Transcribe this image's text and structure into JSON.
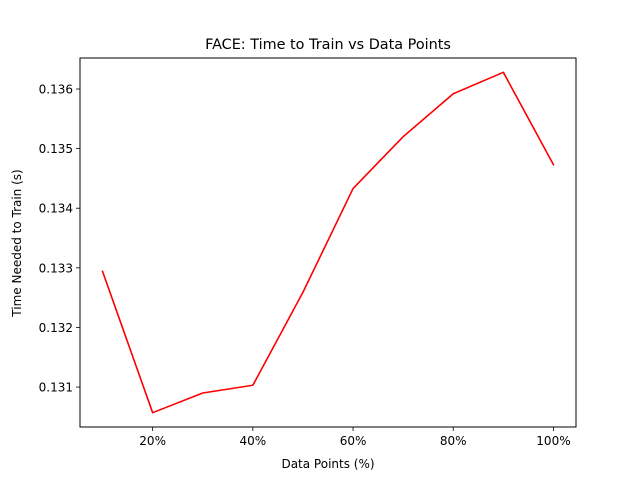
{
  "chart_data": {
    "type": "line",
    "title": "FACE: Time to Train vs Data Points",
    "xlabel": "Data Points (%)",
    "ylabel": "Time Needed to Train (s)",
    "x": [
      10,
      20,
      30,
      40,
      50,
      60,
      70,
      80,
      90,
      100
    ],
    "series": [
      {
        "values": [
          0.13294,
          0.13057,
          0.1309,
          0.13103,
          0.13259,
          0.13433,
          0.1352,
          0.13592,
          0.13628,
          0.13473
        ],
        "color": "#ff0000"
      }
    ],
    "xlim": [
      5.5,
      104.5
    ],
    "ylim": [
      0.13033,
      0.13652
    ],
    "xticks": [
      20,
      40,
      60,
      80,
      100
    ],
    "xtick_labels": [
      "20%",
      "40%",
      "60%",
      "80%",
      "100%"
    ],
    "yticks": [
      0.131,
      0.132,
      0.133,
      0.134,
      0.135,
      0.136
    ],
    "ytick_labels": [
      "0.131",
      "0.132",
      "0.133",
      "0.134",
      "0.135",
      "0.136"
    ],
    "grid": false,
    "legend": "none"
  }
}
